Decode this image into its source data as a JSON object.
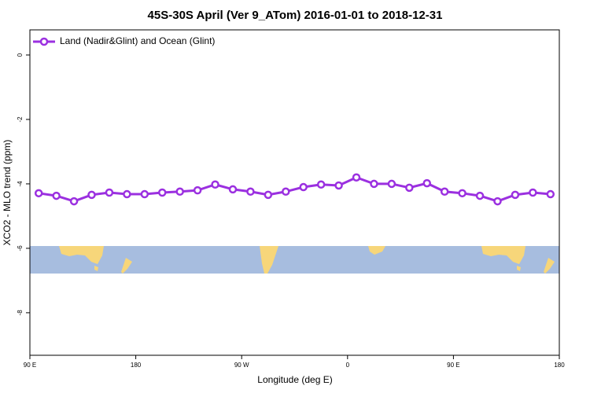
{
  "chart_data": {
    "type": "line",
    "title": "45S-30S April (Ver 9_ATom)   2016-01-01 to 2018-12-31",
    "x_label": "Longitude (deg E)",
    "y_label": "XCO2 - MLO trend (ppm)",
    "legend": "top-left",
    "x": [
      97.5,
      112.5,
      127.5,
      142.5,
      157.5,
      172.5,
      187.5,
      202.5,
      217.5,
      232.5,
      247.5,
      262.5,
      277.5,
      292.5,
      307.5,
      322.5,
      337.5,
      352.5,
      367.5,
      382.5,
      397.5,
      412.5,
      427.5,
      442.5,
      457.5,
      472.5,
      487.5,
      502.5,
      517.5,
      532.5
    ],
    "series": [
      {
        "name": "Land (Nadir&Glint) and Ocean (Glint)",
        "color": "#9b30e0",
        "values": [
          -4.29,
          -4.37,
          -4.54,
          -4.34,
          -4.27,
          -4.32,
          -4.32,
          -4.27,
          -4.24,
          -4.2,
          -4.02,
          -4.17,
          -4.24,
          -4.34,
          -4.24,
          -4.1,
          -4.02,
          -4.05,
          -3.8,
          -4.0,
          -4.0,
          -4.12,
          -3.98,
          -4.24,
          -4.29,
          -4.37,
          -4.54,
          -4.34,
          -4.27,
          -4.32
        ]
      }
    ],
    "xlim": [
      90,
      540
    ],
    "xticks": [
      {
        "value": 90,
        "label": "90 E"
      },
      {
        "value": 180,
        "label": "180"
      },
      {
        "value": 270,
        "label": "90 W"
      },
      {
        "value": 360,
        "label": "0"
      },
      {
        "value": 450,
        "label": "90 E"
      },
      {
        "value": 540,
        "label": "180"
      }
    ],
    "ylim": [
      -9.32,
      0.78
    ],
    "yticks": [
      0,
      -2,
      -4,
      -6,
      -8
    ]
  }
}
